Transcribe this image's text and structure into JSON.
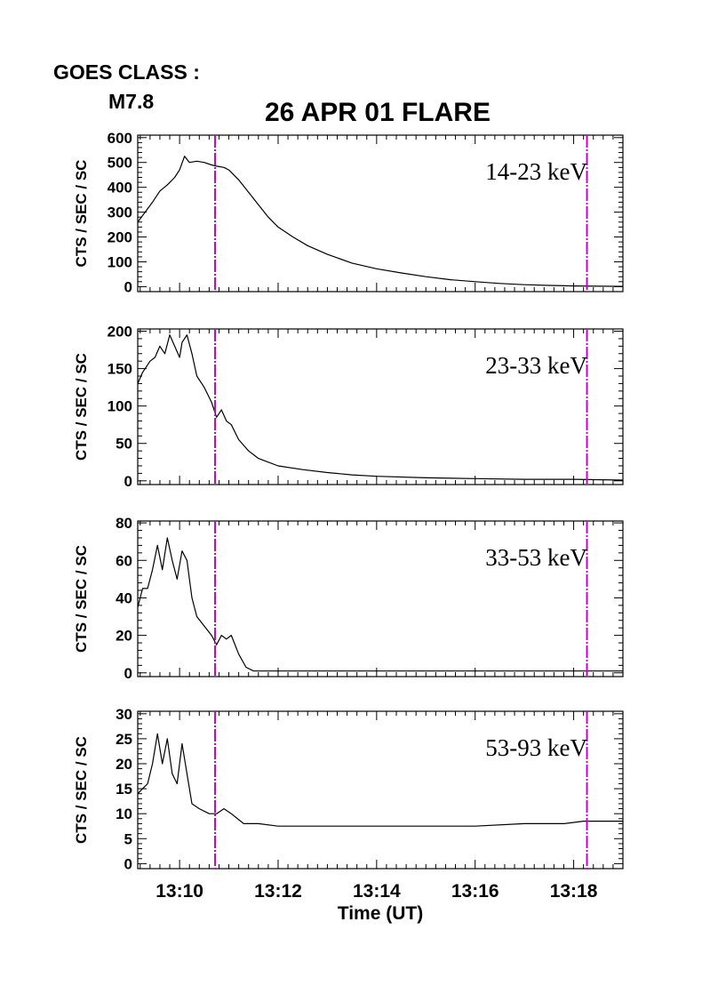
{
  "header": {
    "goes_label": "GOES CLASS :",
    "goes_value": "M7.8",
    "title": "26 APR 01 FLARE"
  },
  "colors": {
    "marker": "#cc00cc",
    "line": "#000000"
  },
  "chart_data": {
    "type": "line",
    "title": "26 APR 01 FLARE",
    "xlabel": "Time (UT)",
    "x_ticks": [
      "13:10",
      "13:12",
      "13:14",
      "13:16",
      "13:18"
    ],
    "x_tick_minutes": [
      10,
      12,
      14,
      16,
      18
    ],
    "xlim_minutes": [
      9.15,
      19.0
    ],
    "vertical_markers_minutes": [
      10.72,
      18.27
    ],
    "grid": false,
    "panels": [
      {
        "name": "14-23 keV",
        "ylabel": "CTS / SEC / SC",
        "ylim": [
          -20,
          610
        ],
        "y_ticks": [
          0,
          100,
          200,
          300,
          400,
          500,
          600
        ],
        "points": [
          [
            9.15,
            260
          ],
          [
            9.3,
            300
          ],
          [
            9.45,
            340
          ],
          [
            9.6,
            385
          ],
          [
            9.75,
            410
          ],
          [
            9.9,
            440
          ],
          [
            10.0,
            470
          ],
          [
            10.1,
            525
          ],
          [
            10.2,
            500
          ],
          [
            10.35,
            505
          ],
          [
            10.5,
            500
          ],
          [
            10.65,
            490
          ],
          [
            10.75,
            485
          ],
          [
            10.9,
            480
          ],
          [
            11.0,
            470
          ],
          [
            11.2,
            430
          ],
          [
            11.4,
            380
          ],
          [
            11.6,
            330
          ],
          [
            11.8,
            280
          ],
          [
            12.0,
            240
          ],
          [
            12.3,
            200
          ],
          [
            12.6,
            165
          ],
          [
            13.0,
            130
          ],
          [
            13.5,
            95
          ],
          [
            14.0,
            72
          ],
          [
            14.5,
            55
          ],
          [
            15.0,
            40
          ],
          [
            15.5,
            28
          ],
          [
            16.0,
            20
          ],
          [
            16.5,
            13
          ],
          [
            17.0,
            8
          ],
          [
            17.5,
            5
          ],
          [
            18.0,
            3
          ],
          [
            18.5,
            2
          ],
          [
            19.0,
            1
          ]
        ]
      },
      {
        "name": "23-33 keV",
        "ylabel": "CTS / SEC / SC",
        "ylim": [
          -5,
          203
        ],
        "y_ticks": [
          0,
          50,
          100,
          150,
          200
        ],
        "points": [
          [
            9.15,
            130
          ],
          [
            9.25,
            145
          ],
          [
            9.4,
            160
          ],
          [
            9.5,
            165
          ],
          [
            9.6,
            180
          ],
          [
            9.7,
            170
          ],
          [
            9.8,
            195
          ],
          [
            9.9,
            180
          ],
          [
            10.0,
            165
          ],
          [
            10.05,
            185
          ],
          [
            10.15,
            195
          ],
          [
            10.25,
            170
          ],
          [
            10.35,
            140
          ],
          [
            10.5,
            125
          ],
          [
            10.65,
            105
          ],
          [
            10.75,
            85
          ],
          [
            10.85,
            95
          ],
          [
            10.95,
            80
          ],
          [
            11.05,
            75
          ],
          [
            11.2,
            55
          ],
          [
            11.4,
            40
          ],
          [
            11.6,
            30
          ],
          [
            11.8,
            25
          ],
          [
            12.0,
            20
          ],
          [
            12.5,
            15
          ],
          [
            13.0,
            11
          ],
          [
            13.5,
            8
          ],
          [
            14.0,
            6
          ],
          [
            15.0,
            4
          ],
          [
            16.0,
            3
          ],
          [
            17.0,
            2
          ],
          [
            18.0,
            2
          ],
          [
            19.0,
            1
          ]
        ]
      },
      {
        "name": "33-53 keV",
        "ylabel": "CTS / SEC / SC",
        "ylim": [
          -2,
          81
        ],
        "y_ticks": [
          0,
          20,
          40,
          60,
          80
        ],
        "points": [
          [
            9.15,
            35
          ],
          [
            9.25,
            45
          ],
          [
            9.35,
            45
          ],
          [
            9.45,
            55
          ],
          [
            9.55,
            68
          ],
          [
            9.65,
            55
          ],
          [
            9.75,
            72
          ],
          [
            9.85,
            60
          ],
          [
            9.95,
            50
          ],
          [
            10.05,
            65
          ],
          [
            10.15,
            60
          ],
          [
            10.25,
            40
          ],
          [
            10.35,
            30
          ],
          [
            10.5,
            25
          ],
          [
            10.65,
            20
          ],
          [
            10.75,
            15
          ],
          [
            10.85,
            20
          ],
          [
            10.95,
            18
          ],
          [
            11.05,
            20
          ],
          [
            11.2,
            10
          ],
          [
            11.35,
            3
          ],
          [
            11.5,
            1
          ],
          [
            12.0,
            1
          ],
          [
            13.0,
            1
          ],
          [
            14.0,
            1
          ],
          [
            15.0,
            1
          ],
          [
            16.0,
            1
          ],
          [
            17.0,
            1
          ],
          [
            18.0,
            1
          ],
          [
            19.0,
            1
          ]
        ]
      },
      {
        "name": "53-93 keV",
        "ylabel": "CTS / SEC / SC",
        "ylim": [
          -1,
          30.5
        ],
        "y_ticks": [
          0,
          5,
          10,
          15,
          20,
          25,
          30
        ],
        "points": [
          [
            9.15,
            14
          ],
          [
            9.25,
            15
          ],
          [
            9.35,
            16
          ],
          [
            9.45,
            20
          ],
          [
            9.55,
            26
          ],
          [
            9.65,
            20
          ],
          [
            9.75,
            25
          ],
          [
            9.85,
            18
          ],
          [
            9.95,
            16
          ],
          [
            10.05,
            24
          ],
          [
            10.15,
            18
          ],
          [
            10.25,
            12
          ],
          [
            10.4,
            11
          ],
          [
            10.6,
            10
          ],
          [
            10.75,
            10
          ],
          [
            10.9,
            11
          ],
          [
            11.05,
            10
          ],
          [
            11.3,
            8
          ],
          [
            11.6,
            8
          ],
          [
            12.0,
            7.5
          ],
          [
            13.0,
            7.5
          ],
          [
            14.0,
            7.5
          ],
          [
            15.0,
            7.5
          ],
          [
            16.0,
            7.5
          ],
          [
            17.0,
            8
          ],
          [
            17.8,
            8
          ],
          [
            18.2,
            8.5
          ],
          [
            18.5,
            8.5
          ],
          [
            19.0,
            8.5
          ]
        ]
      }
    ]
  }
}
